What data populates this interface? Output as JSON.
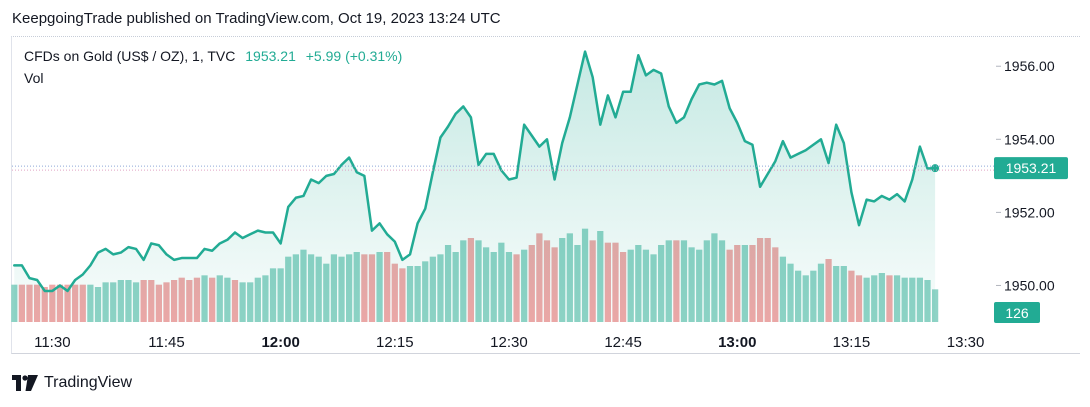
{
  "caption": "KeepgoingTrade published on TradingView.com, Oct 19, 2023 13:24 UTC",
  "legend": {
    "symbol": "CFDs on Gold (US$ / OZ), 1, TVC",
    "price": "1953.21",
    "change": "+5.99 (+0.31%)",
    "volume_label": "Vol"
  },
  "footer": {
    "brand": "TradingView",
    "logo_icon": "tradingview-logo-icon"
  },
  "colors": {
    "line": "#22ab94",
    "fill": "#22ab94",
    "vol_up": "#8fd3c6",
    "vol_down": "#f0a7a7",
    "price_tag": "#22ab94"
  },
  "chart_data": {
    "type": "area",
    "title": "CFDs on Gold (US$ / OZ), 1, TVC",
    "x_ticks": [
      {
        "label": "11:30",
        "t": 0,
        "bold": false
      },
      {
        "label": "11:45",
        "t": 15,
        "bold": false
      },
      {
        "label": "12:00",
        "t": 30,
        "bold": true
      },
      {
        "label": "12:15",
        "t": 45,
        "bold": false
      },
      {
        "label": "12:30",
        "t": 60,
        "bold": false
      },
      {
        "label": "12:45",
        "t": 75,
        "bold": false
      },
      {
        "label": "13:00",
        "t": 90,
        "bold": true
      },
      {
        "label": "13:15",
        "t": 105,
        "bold": false
      },
      {
        "label": "13:30",
        "t": 120,
        "bold": false
      }
    ],
    "x_range": [
      -5.3,
      124
    ],
    "y_ticks": [
      "1950.00",
      "1952.00",
      "1954.00",
      "1956.00"
    ],
    "y_range": [
      1949.0,
      1956.8
    ],
    "last_price_label": "1953.21",
    "last_volume_label": "126",
    "price_series": {
      "t_start": -5.0,
      "t_step": 1.0,
      "values": [
        1950.55,
        1950.55,
        1950.2,
        1950.15,
        1949.85,
        1949.85,
        1950.0,
        1949.85,
        1950.15,
        1950.3,
        1950.55,
        1950.9,
        1951.0,
        1950.85,
        1950.9,
        1951.05,
        1951.0,
        1950.7,
        1951.15,
        1951.1,
        1950.85,
        1950.7,
        1950.75,
        1950.75,
        1950.75,
        1951.0,
        1950.95,
        1951.15,
        1951.25,
        1951.45,
        1951.3,
        1951.4,
        1951.5,
        1951.45,
        1951.45,
        1951.15,
        1952.15,
        1952.4,
        1952.45,
        1952.9,
        1952.8,
        1953.0,
        1953.05,
        1953.3,
        1953.5,
        1953.1,
        1953.0,
        1951.5,
        1951.7,
        1951.4,
        1951.2,
        1950.7,
        1950.85,
        1951.7,
        1952.1,
        1953.1,
        1954.05,
        1954.35,
        1954.7,
        1954.9,
        1954.6,
        1953.3,
        1953.6,
        1953.6,
        1953.15,
        1952.9,
        1952.95,
        1954.4,
        1954.1,
        1953.8,
        1954.0,
        1952.9,
        1953.9,
        1954.6,
        1955.5,
        1956.4,
        1955.7,
        1954.4,
        1955.2,
        1954.6,
        1955.3,
        1955.3,
        1956.3,
        1955.75,
        1955.9,
        1955.8,
        1954.9,
        1954.45,
        1954.6,
        1955.1,
        1955.5,
        1955.55,
        1955.5,
        1955.6,
        1954.85,
        1954.45,
        1953.95,
        1953.85,
        1952.7,
        1953.05,
        1953.4,
        1953.95,
        1953.5,
        1953.6,
        1953.7,
        1953.85,
        1954.0,
        1953.35,
        1954.4,
        1953.9,
        1952.55,
        1951.65,
        1952.35,
        1952.3,
        1952.45,
        1952.35,
        1952.5,
        1952.3,
        1952.9,
        1953.8,
        1953.2,
        1953.21
      ]
    },
    "volume_series": {
      "scale_max": 60,
      "up": [
        true,
        false,
        false,
        false,
        false,
        false,
        false,
        false,
        false,
        false,
        true,
        true,
        true,
        true,
        true,
        true,
        true,
        false,
        false,
        false,
        false,
        false,
        false,
        false,
        false,
        true,
        false,
        true,
        true,
        false,
        true,
        true,
        true,
        true,
        true,
        true,
        true,
        true,
        true,
        true,
        true,
        true,
        true,
        true,
        true,
        true,
        false,
        false,
        true,
        false,
        false,
        false,
        true,
        true,
        true,
        true,
        true,
        true,
        true,
        true,
        false,
        true,
        true,
        true,
        true,
        true,
        false,
        true,
        false,
        false,
        false,
        false,
        true,
        true,
        true,
        true,
        false,
        true,
        false,
        false,
        false,
        true,
        true,
        true,
        true,
        true,
        true,
        false,
        true,
        true,
        true,
        true,
        true,
        true,
        false,
        false,
        true,
        false,
        false,
        false,
        false,
        true,
        true,
        true,
        true,
        true,
        true,
        false,
        true,
        true,
        false,
        false,
        true,
        true,
        true,
        false,
        true,
        true,
        true,
        true,
        true,
        true
      ],
      "values": [
        16,
        16,
        16,
        16,
        15,
        16,
        16,
        16,
        16,
        16,
        16,
        15,
        17,
        17,
        18,
        18,
        17,
        18,
        18,
        16,
        17,
        18,
        19,
        18,
        19,
        20,
        19,
        20,
        19,
        18,
        17,
        17,
        19,
        20,
        23,
        23,
        28,
        29,
        31,
        29,
        28,
        25,
        29,
        28,
        29,
        30,
        29,
        29,
        30,
        30,
        25,
        23,
        24,
        24,
        26,
        28,
        29,
        33,
        30,
        35,
        36,
        35,
        32,
        30,
        34,
        30,
        29,
        31,
        33,
        38,
        35,
        32,
        36,
        38,
        33,
        40,
        35,
        39,
        34,
        34,
        30,
        31,
        33,
        31,
        29,
        33,
        35,
        35,
        35,
        32,
        31,
        35,
        38,
        35,
        31,
        33,
        33,
        33,
        36,
        36,
        32,
        28,
        25,
        22,
        20,
        22,
        25,
        27,
        24,
        24,
        22,
        20,
        19,
        20,
        21,
        20,
        20,
        19,
        19,
        19,
        18,
        14
      ]
    }
  }
}
